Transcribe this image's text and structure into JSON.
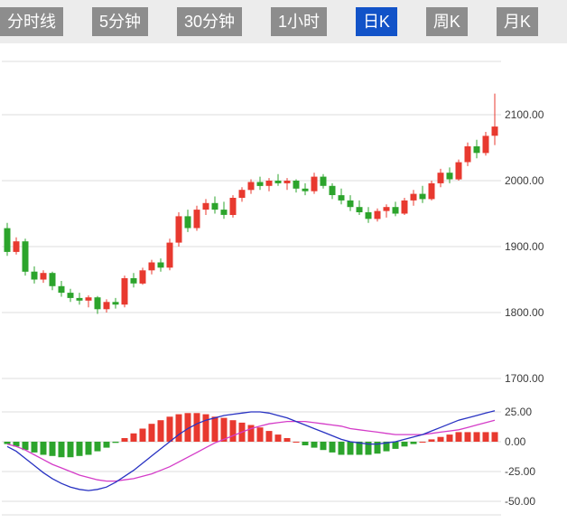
{
  "toolbar": {
    "buttons": [
      {
        "label": "分时线",
        "active": false
      },
      {
        "label": "5分钟",
        "active": false
      },
      {
        "label": "30分钟",
        "active": false
      },
      {
        "label": "1小时",
        "active": false
      },
      {
        "label": "日K",
        "active": true
      },
      {
        "label": "周K",
        "active": false
      },
      {
        "label": "月K",
        "active": false
      }
    ]
  },
  "colors": {
    "toolbar_bg": "#ececec",
    "button_bg": "#8d8d8d",
    "button_active_bg": "#1253c8",
    "up": "#e8392f",
    "down": "#2ca42c",
    "dif_line": "#2832c2",
    "dea_line": "#d43cc8",
    "grid": "#dcdcdc",
    "axis_text": "#3a3a3a"
  },
  "chart_data": {
    "type": "candlestick",
    "title": "",
    "convention": "chinese-red-up-green-down",
    "panels": [
      {
        "name": "price",
        "axis_labels": [
          "2100.00",
          "2000.00",
          "1900.00",
          "1800.00",
          "1700.00"
        ],
        "axis_values": [
          2100,
          2000,
          1900,
          1800,
          1700
        ],
        "range": [
          1700,
          2180
        ]
      },
      {
        "name": "macd",
        "axis_labels": [
          "25.00",
          "0.00",
          "-25.00",
          "-50.00"
        ],
        "axis_values": [
          25,
          0,
          -25,
          -50
        ],
        "range": [
          -55,
          30
        ]
      }
    ],
    "candles": [
      [
        1928,
        1936,
        1886,
        1892
      ],
      [
        1892,
        1914,
        1888,
        1908
      ],
      [
        1908,
        1912,
        1856,
        1862
      ],
      [
        1862,
        1870,
        1844,
        1850
      ],
      [
        1850,
        1864,
        1845,
        1860
      ],
      [
        1860,
        1862,
        1834,
        1840
      ],
      [
        1840,
        1848,
        1824,
        1830
      ],
      [
        1830,
        1836,
        1816,
        1822
      ],
      [
        1822,
        1830,
        1812,
        1818
      ],
      [
        1818,
        1826,
        1808,
        1823
      ],
      [
        1823,
        1825,
        1798,
        1805
      ],
      [
        1805,
        1820,
        1800,
        1816
      ],
      [
        1816,
        1822,
        1806,
        1812
      ],
      [
        1812,
        1856,
        1808,
        1852
      ],
      [
        1852,
        1860,
        1838,
        1844
      ],
      [
        1844,
        1868,
        1842,
        1864
      ],
      [
        1864,
        1880,
        1858,
        1876
      ],
      [
        1876,
        1882,
        1862,
        1868
      ],
      [
        1868,
        1912,
        1864,
        1906
      ],
      [
        1906,
        1952,
        1900,
        1946
      ],
      [
        1946,
        1956,
        1922,
        1928
      ],
      [
        1928,
        1962,
        1924,
        1956
      ],
      [
        1956,
        1972,
        1948,
        1966
      ],
      [
        1966,
        1976,
        1950,
        1956
      ],
      [
        1956,
        1968,
        1942,
        1948
      ],
      [
        1948,
        1978,
        1944,
        1974
      ],
      [
        1974,
        1990,
        1968,
        1986
      ],
      [
        1986,
        2002,
        1980,
        1998
      ],
      [
        1998,
        2006,
        1986,
        1992
      ],
      [
        1992,
        2004,
        1984,
        2000
      ],
      [
        2000,
        2010,
        1992,
        1996
      ],
      [
        1996,
        2004,
        1986,
        2000
      ],
      [
        2000,
        2002,
        1982,
        1988
      ],
      [
        1988,
        1996,
        1978,
        1984
      ],
      [
        1984,
        2012,
        1980,
        2006
      ],
      [
        2006,
        2010,
        1988,
        1992
      ],
      [
        1992,
        1996,
        1972,
        1978
      ],
      [
        1978,
        1988,
        1964,
        1970
      ],
      [
        1970,
        1978,
        1954,
        1960
      ],
      [
        1960,
        1970,
        1948,
        1952
      ],
      [
        1952,
        1960,
        1936,
        1942
      ],
      [
        1942,
        1958,
        1938,
        1954
      ],
      [
        1954,
        1964,
        1944,
        1960
      ],
      [
        1960,
        1968,
        1946,
        1950
      ],
      [
        1950,
        1974,
        1948,
        1970
      ],
      [
        1970,
        1986,
        1962,
        1980
      ],
      [
        1980,
        1992,
        1966,
        1972
      ],
      [
        1972,
        2000,
        1970,
        1996
      ],
      [
        1996,
        2018,
        1990,
        2012
      ],
      [
        2012,
        2020,
        1996,
        2002
      ],
      [
        2002,
        2032,
        2000,
        2028
      ],
      [
        2028,
        2058,
        2022,
        2052
      ],
      [
        2052,
        2062,
        2034,
        2042
      ],
      [
        2042,
        2074,
        2038,
        2068
      ],
      [
        2068,
        2132,
        2054,
        2082
      ]
    ],
    "macd": {
      "dif": [
        -4,
        -8,
        -14,
        -20,
        -26,
        -31,
        -35,
        -38,
        -40,
        -41,
        -40,
        -38,
        -34,
        -29,
        -24,
        -18,
        -12,
        -6,
        0,
        6,
        11,
        15,
        18,
        20,
        22,
        23,
        24,
        25,
        25,
        24,
        22,
        20,
        17,
        14,
        11,
        8,
        5,
        2,
        0,
        -1,
        -2,
        -2,
        -1,
        0,
        2,
        4,
        6,
        9,
        12,
        15,
        18,
        20,
        22,
        24,
        26
      ],
      "dea": [
        -2,
        -4,
        -7,
        -11,
        -15,
        -19,
        -22,
        -25,
        -28,
        -30,
        -32,
        -33,
        -33,
        -32,
        -31,
        -29,
        -27,
        -24,
        -21,
        -17,
        -13,
        -9,
        -5,
        -1,
        2,
        5,
        8,
        11,
        13,
        15,
        16,
        17,
        17,
        17,
        16,
        15,
        14,
        13,
        11,
        10,
        9,
        8,
        7,
        6,
        6,
        6,
        6,
        7,
        8,
        9,
        10,
        12,
        14,
        16,
        18
      ],
      "hist": [
        -2,
        -4,
        -7,
        -9,
        -11,
        -12,
        -13,
        -13,
        -12,
        -11,
        -8,
        -5,
        -1,
        3,
        7,
        11,
        15,
        18,
        21,
        23,
        24,
        24,
        23,
        21,
        20,
        18,
        16,
        14,
        12,
        9,
        6,
        3,
        0,
        -3,
        -5,
        -7,
        -9,
        -11,
        -11,
        -11,
        -11,
        -10,
        -8,
        -6,
        -4,
        -2,
        0,
        2,
        4,
        6,
        8,
        8,
        8,
        8,
        8
      ]
    }
  }
}
